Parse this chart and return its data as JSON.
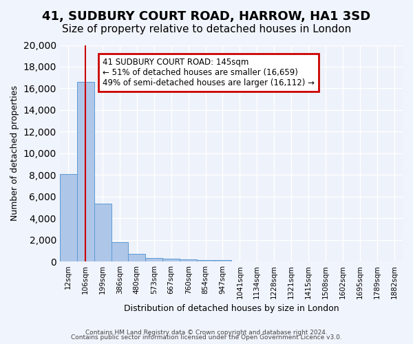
{
  "title": "41, SUDBURY COURT ROAD, HARROW, HA1 3SD",
  "subtitle": "Size of property relative to detached houses in London",
  "xlabel": "Distribution of detached houses by size in London",
  "ylabel": "Number of detached properties",
  "footer_line1": "Contains HM Land Registry data © Crown copyright and database right 2024.",
  "footer_line2": "Contains public sector information licensed under the Open Government Licence v3.0.",
  "annotation_line1": "41 SUDBURY COURT ROAD: 145sqm",
  "annotation_line2": "← 51% of detached houses are smaller (16,659)",
  "annotation_line3": "49% of semi-detached houses are larger (16,112) →",
  "bar_values": [
    8050,
    16600,
    5350,
    1800,
    700,
    350,
    230,
    200,
    150,
    100,
    0,
    0,
    0,
    0,
    0,
    0,
    0,
    0,
    0,
    0
  ],
  "bar_labels": [
    "12sqm",
    "106sqm",
    "199sqm",
    "386sqm",
    "480sqm",
    "573sqm",
    "667sqm",
    "760sqm",
    "854sqm",
    "947sqm",
    "1041sqm",
    "1134sqm",
    "1228sqm",
    "1321sqm",
    "1415sqm",
    "1508sqm",
    "1602sqm",
    "1695sqm",
    "1789sqm",
    "1882sqm"
  ],
  "bar_color": "#aec6e8",
  "bar_edge_color": "#5b9bd5",
  "red_line_x": 1,
  "ylim": [
    0,
    20000
  ],
  "yticks": [
    0,
    2000,
    4000,
    6000,
    8000,
    10000,
    12000,
    14000,
    16000,
    18000,
    20000
  ],
  "bg_color": "#eef2fa",
  "grid_color": "#ffffff",
  "title_fontsize": 13,
  "subtitle_fontsize": 11,
  "annotation_box_color": "#ffcccc",
  "annotation_border_color": "#cc0000",
  "red_line_color": "#cc0000"
}
